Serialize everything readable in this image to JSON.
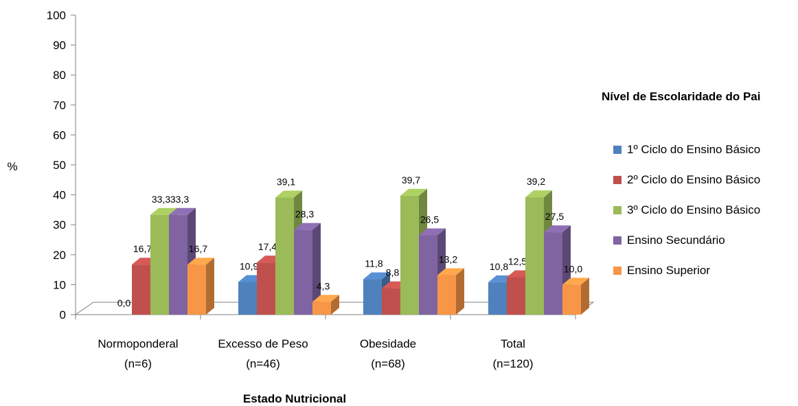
{
  "chart_data": {
    "type": "bar",
    "ylabel": "%",
    "xlabel": "Estado Nutricional",
    "ylim": [
      0,
      100
    ],
    "yticks": [
      "0",
      "10",
      "20",
      "30",
      "40",
      "50",
      "60",
      "70",
      "80",
      "90",
      "100"
    ],
    "categories": [
      {
        "line1": "Normoponderal",
        "line2": "(n=6)"
      },
      {
        "line1": "Excesso de Peso",
        "line2": "(n=46)"
      },
      {
        "line1": "Obesidade",
        "line2": "(n=68)"
      },
      {
        "line1": "Total",
        "line2": "(n=120)"
      }
    ],
    "legend_title": "Nível de Escolaridade do Pai",
    "legend_position": "right",
    "series": [
      {
        "name": "1º Ciclo do Ensino Básico",
        "color": "#4F81BD",
        "values": [
          0.0,
          10.9,
          11.8,
          10.8
        ],
        "labels": [
          "0,0",
          "10,9",
          "11,8",
          "10,8"
        ]
      },
      {
        "name": "2º Ciclo do Ensino Básico",
        "color": "#C0504D",
        "values": [
          16.7,
          17.4,
          8.8,
          12.5
        ],
        "labels": [
          "16,7",
          "17,4",
          "8,8",
          "12,5"
        ]
      },
      {
        "name": "3º Ciclo do Ensino Básico",
        "color": "#9BBB59",
        "values": [
          33.3,
          39.1,
          39.7,
          39.2
        ],
        "labels": [
          "33,3",
          "39,1",
          "39,7",
          "39,2"
        ]
      },
      {
        "name": "Ensino Secundário",
        "color": "#8064A2",
        "values": [
          33.3,
          28.3,
          26.5,
          27.5
        ],
        "labels": [
          "33,3",
          "28,3",
          "26,5",
          "27,5"
        ]
      },
      {
        "name": "Ensino Superior",
        "color": "#F79646",
        "values": [
          16.7,
          4.3,
          13.2,
          10.0
        ],
        "labels": [
          "16,7",
          "4,3",
          "13,2",
          "10,0"
        ]
      }
    ]
  }
}
